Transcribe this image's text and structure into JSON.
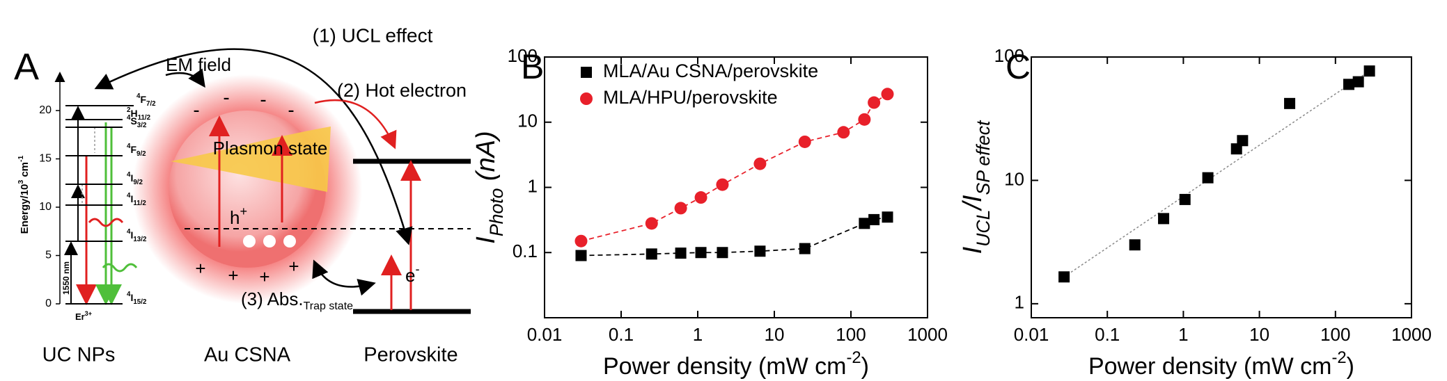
{
  "diagram": {
    "panel_label": "A",
    "energy_axis": [
      {
        "main": "Energy/10"
      },
      {
        "sup": "3"
      },
      {
        "main": " cm"
      },
      {
        "sup": "-1"
      }
    ],
    "energy_ticks": [
      0,
      5,
      10,
      15,
      20
    ],
    "levels": [
      {
        "sup": "4",
        "main": "F",
        "sub": "7/2"
      },
      {
        "sup": "2",
        "main": "H",
        "sub": "11/2"
      },
      {
        "sup": "4",
        "main": "S",
        "sub": "3/2"
      },
      {
        "sup": "4",
        "main": "F",
        "sub": "9/2"
      },
      {
        "sup": "4",
        "main": "I",
        "sub": "9/2"
      },
      {
        "sup": "4",
        "main": "I",
        "sub": "11/2"
      },
      {
        "sup": "4",
        "main": "I",
        "sub": "13/2"
      },
      {
        "sup": "4",
        "main": "I",
        "sub": "15/2"
      }
    ],
    "pump": "1550 nm",
    "ion": {
      "main": "Er",
      "sup": "3+"
    },
    "ucl_effect": "(1) UCL effect",
    "em_field": "EM field",
    "hot_electron": "(2) Hot electron",
    "plasmon": "Plasmon state",
    "hole": {
      "main": "h",
      "sup": "+"
    },
    "electron": {
      "main": "e",
      "sup": "-"
    },
    "absorption": {
      "main": "(3) Abs.",
      "sub": "Trap state"
    },
    "minus_signs": [
      "-",
      "-",
      "-",
      "-"
    ],
    "plus_signs": [
      "+",
      "+",
      "+",
      "+"
    ],
    "labels": [
      "UC NPs",
      "Au CSNA",
      "Perovskite"
    ]
  },
  "chart_data": [
    {
      "type": "scatter",
      "panel_label": "B",
      "xlabel": [
        {
          "main": "Power density (mW cm"
        },
        {
          "sup": "-2"
        },
        {
          "main": ")"
        }
      ],
      "ylabel": [
        {
          "main": "I"
        },
        {
          "sub": "Photo"
        },
        {
          "main": " (nA)"
        }
      ],
      "xlog": true,
      "ylog": true,
      "xlim": [
        0.01,
        1000
      ],
      "ylim": [
        0.01,
        100
      ],
      "xticks": [
        0.01,
        0.1,
        1,
        10,
        100,
        1000
      ],
      "yticks": [
        0.1,
        1,
        10,
        100
      ],
      "legend": "upper left",
      "series": [
        {
          "name": "MLA/Au CSNA/perovskite",
          "color": "#000000",
          "marker": "square",
          "x": [
            0.03,
            0.25,
            0.6,
            1.1,
            2.1,
            6.5,
            25,
            150,
            200,
            300
          ],
          "values": [
            0.09,
            0.095,
            0.098,
            0.1,
            0.1,
            0.105,
            0.115,
            0.28,
            0.32,
            0.35
          ]
        },
        {
          "name": "MLA/HPU/perovskite",
          "color": "#e8202a",
          "marker": "circle",
          "x": [
            0.03,
            0.25,
            0.6,
            1.1,
            2.1,
            6.5,
            25,
            80,
            150,
            200,
            300
          ],
          "values": [
            0.15,
            0.28,
            0.48,
            0.7,
            1.1,
            2.3,
            5,
            7,
            11,
            20,
            27
          ]
        }
      ]
    },
    {
      "type": "scatter",
      "panel_label": "C",
      "xlabel": [
        {
          "main": "Power density (mW cm"
        },
        {
          "sup": "-2"
        },
        {
          "main": ")"
        }
      ],
      "ylabel": [
        {
          "main": "I"
        },
        {
          "sub": "UCL"
        },
        {
          "main": "/I"
        },
        {
          "sub": "SP effect"
        }
      ],
      "xlog": true,
      "ylog": true,
      "xlim": [
        0.01,
        1000
      ],
      "ylim": [
        0.77,
        100
      ],
      "xticks": [
        0.01,
        0.1,
        1,
        10,
        100,
        1000
      ],
      "yticks": [
        1,
        10,
        100
      ],
      "color": "#000000",
      "marker": "square",
      "x": [
        0.027,
        0.23,
        0.55,
        1.05,
        2.1,
        5,
        6,
        25,
        150,
        200,
        280
      ],
      "values": [
        1.65,
        3.0,
        4.9,
        7.0,
        10.5,
        18,
        21,
        42,
        60,
        63,
        77
      ]
    }
  ]
}
